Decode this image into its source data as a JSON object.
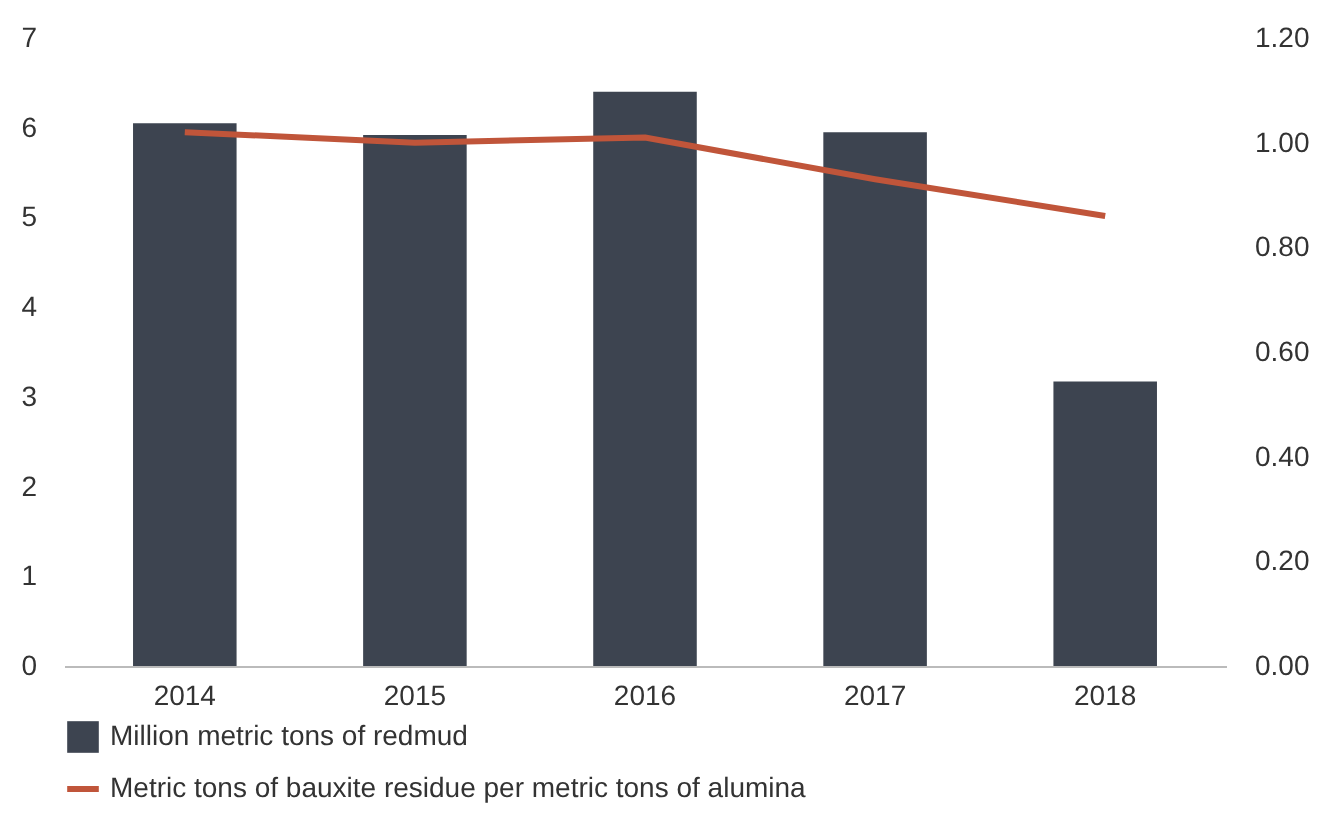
{
  "chart_data": {
    "type": "bar",
    "categories": [
      "2014",
      "2015",
      "2016",
      "2017",
      "2018"
    ],
    "series": [
      {
        "name": "Million metric tons of redmud",
        "color": "#3d4450",
        "values": [
          6.05,
          5.92,
          6.4,
          5.95,
          3.17
        ]
      },
      {
        "name": "Metric tons of bauxite residue per metric tons of alumina",
        "type": "line",
        "axis": "y2",
        "color": "#c0553a",
        "values": [
          1.02,
          1.0,
          1.01,
          0.93,
          0.86
        ]
      }
    ],
    "ylim": [
      0,
      7
    ],
    "yticks": [
      0,
      1,
      2,
      3,
      4,
      5,
      6,
      7
    ],
    "y2lim": [
      0,
      1.2
    ],
    "y2ticks": [
      {
        "value": 0,
        "label": "0.00"
      },
      {
        "value": 0.2,
        "label": "0.20"
      },
      {
        "value": 0.4,
        "label": "0.40"
      },
      {
        "value": 0.6,
        "label": "0.60"
      },
      {
        "value": 0.8,
        "label": "0.80"
      },
      {
        "value": 1.0,
        "label": "1.00"
      },
      {
        "value": 1.2,
        "label": "1.20"
      }
    ],
    "grid": false,
    "legend": "bottom"
  }
}
